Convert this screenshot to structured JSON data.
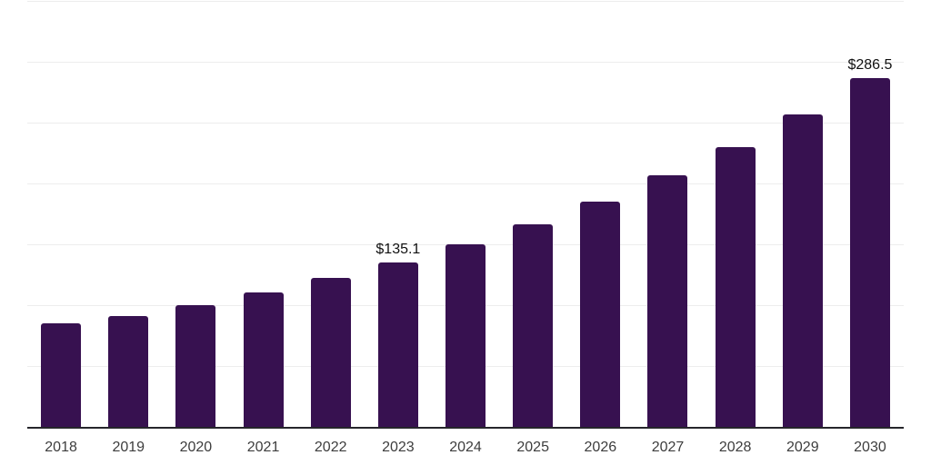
{
  "chart_data": {
    "type": "bar",
    "title": "",
    "xlabel": "",
    "ylabel": "",
    "categories": [
      "2018",
      "2019",
      "2020",
      "2021",
      "2022",
      "2023",
      "2024",
      "2025",
      "2026",
      "2027",
      "2028",
      "2029",
      "2030"
    ],
    "values": [
      85.3,
      91.2,
      100.2,
      110.6,
      122.5,
      135.1,
      150.2,
      166.6,
      185.2,
      206.7,
      229.8,
      256.7,
      286.5
    ],
    "point_labels": [
      "",
      "",
      "",
      "",
      "",
      "$135.1",
      "",
      "",
      "",
      "",
      "",
      "",
      "$286.5"
    ],
    "ylim": [
      0,
      350
    ],
    "grid_step": 50,
    "grid": "horizontal",
    "legend": "none",
    "y_tick_labels_visible": false,
    "colors": {
      "bar": "#371150",
      "gridline": "#ededed",
      "axis_line": "#26262b",
      "tick_label": "#3d3d3d",
      "data_label": "#111111",
      "background": "#ffffff"
    }
  }
}
